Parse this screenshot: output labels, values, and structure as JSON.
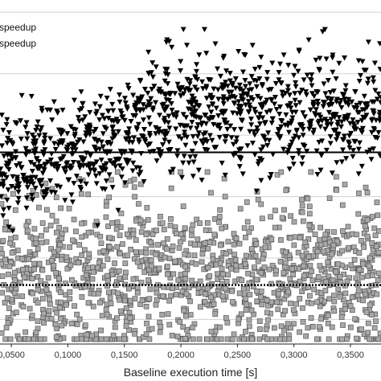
{
  "chart_data": {
    "type": "scatter",
    "title": "",
    "xlabel": "Baseline execution time [s]",
    "ylabel": "",
    "xlim": [
      0.04,
      0.377
    ],
    "ylim": [
      0.0,
      1.4
    ],
    "x_ticks": [
      0.05,
      0.1,
      0.15,
      0.2,
      0.25,
      0.3,
      0.35
    ],
    "x_tick_labels": [
      "0,0500",
      "0,1000",
      "0,1500",
      "0,2000",
      "0,2500",
      "0,3000",
      "0,3500"
    ],
    "y_gridlines": [
      0.1,
      0.35,
      0.6,
      0.85,
      1.1,
      1.35
    ],
    "grid": true,
    "legend": {
      "placement": "top-left",
      "entries": [
        "speedup",
        "speedup"
      ]
    },
    "reference_lines": [
      {
        "style": "solid",
        "y": 0.78
      },
      {
        "style": "dotted",
        "y": 0.24
      }
    ],
    "series": [
      {
        "marker": "triangle-down",
        "color": "#000000",
        "count": 1100,
        "x_range": [
          0.04,
          0.377
        ],
        "y_center": 0.88,
        "y_spread": 0.42,
        "peak_y": 1.28
      },
      {
        "marker": "square",
        "color": "#a8a8a8",
        "stroke": "#555555",
        "count": 1300,
        "x_range": [
          0.04,
          0.377
        ],
        "y_center": 0.28,
        "y_spread": 0.33,
        "peak_y": 0.7
      }
    ]
  }
}
